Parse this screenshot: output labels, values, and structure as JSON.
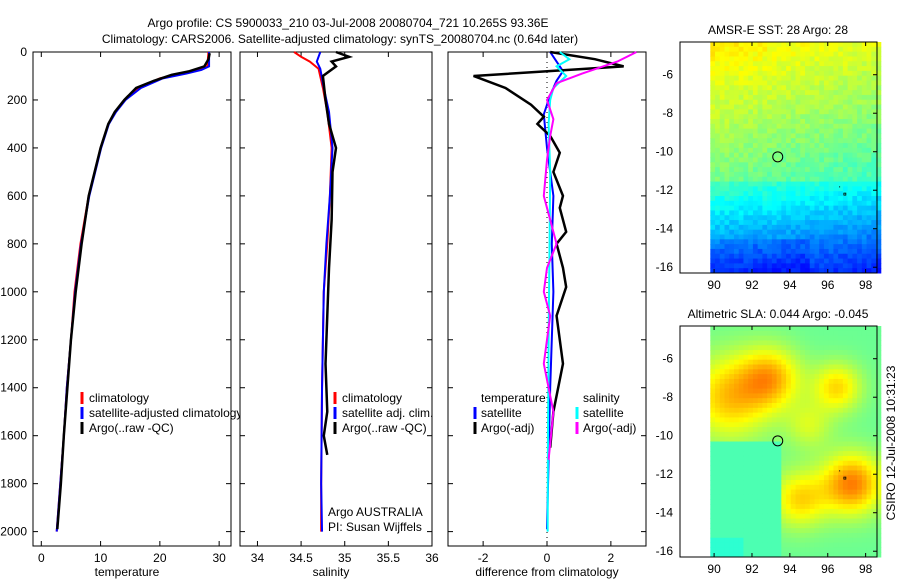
{
  "title_line1": "Argo profile: CS 5900033_210 03-Jul-2008 20080704_721 10.265S 93.36E",
  "title_line2": "Climatology: CARS2006. Satellite-adjusted climatology: synTS_20080704.nc (0.64d later)",
  "credit": "CSIRO 12-Jul-2008 10:31:23",
  "pi_text": [
    "Argo AUSTRALIA",
    "PI: Susan Wijffels"
  ],
  "colors": {
    "clim": "#ff0000",
    "sat": "#0000ff",
    "argo": "#000000",
    "sal_sat": "#00ffff",
    "sal_argo": "#ff00ff"
  },
  "chart_data": [
    {
      "type": "line",
      "xlabel": "temperature",
      "ylabel": "",
      "xlim": [
        -1.4,
        32
      ],
      "ylim": [
        0,
        2060
      ],
      "y_reversed": true,
      "xticks": [
        0,
        10,
        20,
        30
      ],
      "yticks": [
        0,
        200,
        400,
        600,
        800,
        1000,
        1200,
        1400,
        1600,
        1800,
        2000
      ],
      "legend": [
        "climatology",
        "satellite-adjusted climatology",
        "Argo(..raw -QC)"
      ],
      "series": [
        {
          "name": "climatology",
          "color": "clim",
          "x": [
            28.2,
            28,
            26.5,
            24,
            20,
            16.5,
            14,
            12.5,
            11.3,
            10,
            9,
            8,
            6.6,
            5.6,
            5,
            4.3,
            3.8,
            3.2,
            2.6
          ],
          "y": [
            0,
            60,
            75,
            90,
            110,
            150,
            200,
            250,
            300,
            400,
            500,
            600,
            800,
            1000,
            1200,
            1400,
            1600,
            1800,
            2000
          ]
        },
        {
          "name": "satellite-adjusted climatology",
          "color": "sat",
          "x": [
            28.3,
            28.3,
            27,
            24.5,
            20.5,
            16.8,
            14.2,
            12.6,
            11.4,
            10.1,
            9.1,
            8.1,
            6.7,
            5.7,
            5,
            4.3,
            3.8,
            3.2,
            2.6
          ],
          "y": [
            0,
            60,
            75,
            90,
            110,
            150,
            200,
            250,
            300,
            400,
            500,
            600,
            800,
            1000,
            1200,
            1400,
            1600,
            1800,
            2000
          ]
        },
        {
          "name": "Argo(..raw -QC)",
          "color": "argo",
          "x": [
            28.4,
            28.2,
            27.5,
            25,
            22,
            19,
            16,
            14,
            12.4,
            11.3,
            10,
            9,
            8,
            6.8,
            5.8,
            5,
            4.4,
            3.8,
            3.3,
            2.7
          ],
          "y": [
            5,
            30,
            60,
            80,
            95,
            120,
            150,
            200,
            250,
            300,
            400,
            500,
            600,
            800,
            1000,
            1200,
            1400,
            1600,
            1800,
            1990
          ]
        }
      ]
    },
    {
      "type": "line",
      "xlabel": "salinity",
      "ylabel": "",
      "xlim": [
        33.8,
        36
      ],
      "ylim": [
        0,
        2060
      ],
      "y_reversed": true,
      "xticks": [
        34,
        34.5,
        35,
        35.5,
        36
      ],
      "xtick_labels": [
        "34",
        "34.5",
        "35",
        "35.5",
        "36"
      ],
      "legend": [
        "climatology",
        "satellite adj. clim.",
        "Argo(..raw -QC)"
      ],
      "series": [
        {
          "name": "climatology",
          "color": "clim",
          "x": [
            34.42,
            34.5,
            34.6,
            34.7,
            34.75,
            34.8,
            34.85,
            34.83,
            34.8,
            34.76,
            34.74,
            34.73,
            34.73
          ],
          "y": [
            0,
            20,
            40,
            70,
            150,
            250,
            400,
            600,
            800,
            1000,
            1400,
            1800,
            2000
          ]
        },
        {
          "name": "satellite adj. clim.",
          "color": "sat",
          "x": [
            34.72,
            34.7,
            34.68,
            34.72,
            34.76,
            34.82,
            34.86,
            34.83,
            34.79,
            34.76,
            34.74,
            34.73,
            34.74
          ],
          "y": [
            0,
            20,
            40,
            70,
            150,
            250,
            400,
            600,
            800,
            1000,
            1400,
            1800,
            2000
          ]
        },
        {
          "name": "Argo(..raw -QC)",
          "color": "argo",
          "x": [
            34.9,
            35.05,
            34.85,
            34.9,
            34.75,
            34.78,
            34.82,
            34.9,
            34.86,
            34.85,
            34.82,
            34.8,
            34.78,
            34.8,
            34.76,
            34.8
          ],
          "y": [
            0,
            20,
            40,
            60,
            100,
            200,
            300,
            400,
            500,
            700,
            900,
            1100,
            1300,
            1500,
            1600,
            1680
          ]
        }
      ]
    },
    {
      "type": "line",
      "xlabel": "difference from climatology",
      "ylabel": "",
      "xlim": [
        -3.1,
        3.1
      ],
      "ylim": [
        0,
        2060
      ],
      "y_reversed": true,
      "xticks": [
        -2,
        0,
        2
      ],
      "legend": [
        "temperature",
        "satellite",
        "Argo(-adj)",
        "salinity",
        "satellite",
        "Argo(-adj)"
      ],
      "series": [
        {
          "name": "temperature satellite",
          "color": "sat",
          "x": [
            0.1,
            0.3,
            0.5,
            0.3,
            0.1,
            -0.1,
            0,
            0.1,
            0.2,
            0.15,
            0.2,
            0.15,
            0.1,
            0.05,
            0
          ],
          "y": [
            0,
            40,
            80,
            120,
            180,
            260,
            400,
            500,
            600,
            800,
            1000,
            1200,
            1400,
            1700,
            1990
          ]
        },
        {
          "name": "temperature Argo(-adj)",
          "color": "argo",
          "x": [
            0.1,
            1.5,
            2.4,
            -2.3,
            -1.3,
            -0.5,
            -0.1,
            -0.3,
            0.1,
            0.4,
            0.2,
            0.5,
            0.4,
            0.6,
            0.3,
            0.5,
            0.6,
            0.3,
            0.5,
            0.2,
            0.1
          ],
          "y": [
            0,
            30,
            60,
            100,
            150,
            220,
            270,
            300,
            350,
            420,
            500,
            600,
            650,
            750,
            800,
            900,
            980,
            1100,
            1300,
            1500,
            1650
          ]
        },
        {
          "name": "salinity satellite",
          "color": "sal_sat",
          "x": [
            0.4,
            0.7,
            0.3,
            0.6,
            0.2,
            0.1,
            0.05,
            0.1,
            0.08,
            0.05,
            0.03,
            0.02
          ],
          "y": [
            0,
            30,
            60,
            100,
            150,
            200,
            300,
            500,
            800,
            1200,
            1600,
            2000
          ]
        },
        {
          "name": "salinity Argo(-adj)",
          "color": "sal_argo",
          "x": [
            2.8,
            2.2,
            1.1,
            0.3,
            0,
            0.2,
            0.1,
            0,
            -0.1,
            0.1,
            0.3,
            0,
            -0.1,
            0.1,
            -0.1,
            0.2,
            0.05
          ],
          "y": [
            0,
            40,
            90,
            130,
            200,
            280,
            350,
            450,
            600,
            700,
            800,
            900,
            1000,
            1100,
            1300,
            1500,
            1700
          ]
        }
      ]
    },
    {
      "type": "heatmap",
      "title": "AMSR-E SST: 28 Argo: 28",
      "xlim": [
        88.2,
        98.6
      ],
      "ylim": [
        -16.3,
        -4.3
      ],
      "xticks": [
        90,
        92,
        94,
        96,
        98
      ],
      "yticks": [
        -6,
        -8,
        -10,
        -12,
        -14,
        -16
      ],
      "profile_marker": {
        "lon": 93.36,
        "lat": -10.265
      }
    },
    {
      "type": "heatmap",
      "title": "Altimetric SLA: 0.044 Argo: -0.045",
      "xlim": [
        88.2,
        98.6
      ],
      "ylim": [
        -16.3,
        -4.3
      ],
      "xticks": [
        90,
        92,
        94,
        96,
        98
      ],
      "yticks": [
        -6,
        -8,
        -10,
        -12,
        -14,
        -16
      ],
      "profile_marker": {
        "lon": 93.36,
        "lat": -10.265
      }
    }
  ]
}
